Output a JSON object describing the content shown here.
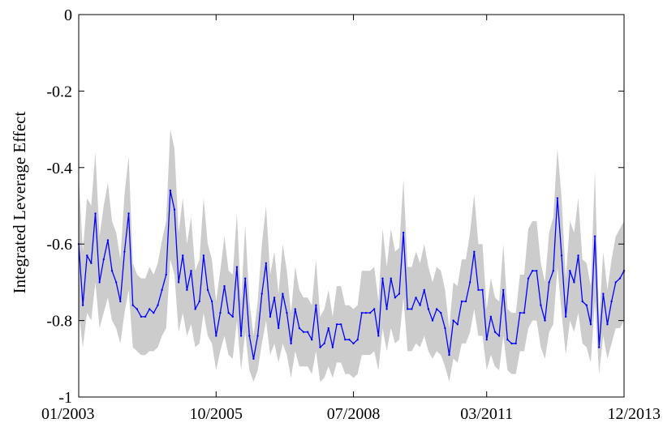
{
  "chart_data": {
    "type": "line",
    "title": "",
    "xlabel": "",
    "ylabel": "Integrated Leverage Effect",
    "ylim": [
      -1,
      0
    ],
    "yticks": [
      0,
      -0.2,
      -0.4,
      -0.6,
      -0.8,
      -1
    ],
    "ytick_labels": [
      "0",
      "-0.2",
      "-0.4",
      "-0.6",
      "-0.8",
      "-1"
    ],
    "xlim": [
      "2003-01",
      "2013-12"
    ],
    "xticks": [
      "2003-01",
      "2005-10",
      "2008-07",
      "2011-03",
      "2013-12"
    ],
    "xtick_labels": [
      "01/2003",
      "10/2005",
      "07/2008",
      "03/2011",
      "12/2013"
    ],
    "grid": false,
    "band_color": "#cccccc",
    "line_color": "#0000ff",
    "x": [
      "2003-01",
      "2003-02",
      "2003-03",
      "2003-04",
      "2003-05",
      "2003-06",
      "2003-07",
      "2003-08",
      "2003-09",
      "2003-10",
      "2003-11",
      "2003-12",
      "2004-01",
      "2004-02",
      "2004-03",
      "2004-04",
      "2004-05",
      "2004-06",
      "2004-07",
      "2004-08",
      "2004-09",
      "2004-10",
      "2004-11",
      "2004-12",
      "2005-01",
      "2005-02",
      "2005-03",
      "2005-04",
      "2005-05",
      "2005-06",
      "2005-07",
      "2005-08",
      "2005-09",
      "2005-10",
      "2005-11",
      "2005-12",
      "2006-01",
      "2006-02",
      "2006-03",
      "2006-04",
      "2006-05",
      "2006-06",
      "2006-07",
      "2006-08",
      "2006-09",
      "2006-10",
      "2006-11",
      "2006-12",
      "2007-01",
      "2007-02",
      "2007-03",
      "2007-04",
      "2007-05",
      "2007-06",
      "2007-07",
      "2007-08",
      "2007-09",
      "2007-10",
      "2007-11",
      "2007-12",
      "2008-01",
      "2008-02",
      "2008-03",
      "2008-04",
      "2008-05",
      "2008-06",
      "2008-07",
      "2008-08",
      "2008-09",
      "2008-10",
      "2008-11",
      "2008-12",
      "2009-01",
      "2009-02",
      "2009-03",
      "2009-04",
      "2009-05",
      "2009-06",
      "2009-07",
      "2009-08",
      "2009-09",
      "2009-10",
      "2009-11",
      "2009-12",
      "2010-01",
      "2010-02",
      "2010-03",
      "2010-04",
      "2010-05",
      "2010-06",
      "2010-07",
      "2010-08",
      "2010-09",
      "2010-10",
      "2010-11",
      "2010-12",
      "2011-01",
      "2011-02",
      "2011-03",
      "2011-04",
      "2011-05",
      "2011-06",
      "2011-07",
      "2011-08",
      "2011-09",
      "2011-10",
      "2011-11",
      "2011-12",
      "2012-01",
      "2012-02",
      "2012-03",
      "2012-04",
      "2012-05",
      "2012-06",
      "2012-07",
      "2012-08",
      "2012-09",
      "2012-10",
      "2012-11",
      "2012-12",
      "2013-01",
      "2013-02",
      "2013-03",
      "2013-04",
      "2013-05",
      "2013-06",
      "2013-07",
      "2013-08",
      "2013-09",
      "2013-10",
      "2013-11",
      "2013-12"
    ],
    "series": [
      {
        "values": [
          -0.6,
          -0.76,
          -0.63,
          -0.65,
          -0.52,
          -0.7,
          -0.64,
          -0.59,
          -0.67,
          -0.7,
          -0.75,
          -0.62,
          -0.52,
          -0.76,
          -0.77,
          -0.79,
          -0.79,
          -0.77,
          -0.78,
          -0.76,
          -0.72,
          -0.68,
          -0.46,
          -0.51,
          -0.7,
          -0.63,
          -0.72,
          -0.67,
          -0.77,
          -0.75,
          -0.63,
          -0.72,
          -0.75,
          -0.84,
          -0.78,
          -0.71,
          -0.78,
          -0.79,
          -0.66,
          -0.84,
          -0.69,
          -0.84,
          -0.9,
          -0.84,
          -0.73,
          -0.65,
          -0.79,
          -0.74,
          -0.82,
          -0.73,
          -0.78,
          -0.86,
          -0.77,
          -0.82,
          -0.83,
          -0.83,
          -0.85,
          -0.76,
          -0.87,
          -0.86,
          -0.82,
          -0.87,
          -0.81,
          -0.81,
          -0.85,
          -0.85,
          -0.86,
          -0.85,
          -0.78,
          -0.78,
          -0.78,
          -0.77,
          -0.84,
          -0.69,
          -0.77,
          -0.69,
          -0.74,
          -0.73,
          -0.57,
          -0.77,
          -0.77,
          -0.74,
          -0.76,
          -0.72,
          -0.77,
          -0.8,
          -0.77,
          -0.78,
          -0.82,
          -0.89,
          -0.8,
          -0.81,
          -0.75,
          -0.75,
          -0.7,
          -0.62,
          -0.72,
          -0.72,
          -0.85,
          -0.79,
          -0.83,
          -0.84,
          -0.72,
          -0.85,
          -0.86,
          -0.86,
          -0.78,
          -0.78,
          -0.69,
          -0.67,
          -0.67,
          -0.76,
          -0.8,
          -0.7,
          -0.67,
          -0.48,
          -0.63,
          -0.79,
          -0.67,
          -0.7,
          -0.63,
          -0.75,
          -0.76,
          -0.81,
          -0.58,
          -0.87,
          -0.73,
          -0.81,
          -0.75,
          -0.7,
          -0.69,
          -0.67
        ],
        "lower": [
          -0.78,
          -0.87,
          -0.78,
          -0.8,
          -0.7,
          -0.82,
          -0.78,
          -0.74,
          -0.8,
          -0.82,
          -0.86,
          -0.78,
          -0.72,
          -0.87,
          -0.88,
          -0.89,
          -0.89,
          -0.88,
          -0.88,
          -0.87,
          -0.84,
          -0.82,
          -0.64,
          -0.68,
          -0.83,
          -0.78,
          -0.84,
          -0.81,
          -0.87,
          -0.86,
          -0.78,
          -0.84,
          -0.86,
          -0.93,
          -0.88,
          -0.84,
          -0.89,
          -0.9,
          -0.8,
          -0.93,
          -0.83,
          -0.93,
          -0.96,
          -0.93,
          -0.86,
          -0.8,
          -0.89,
          -0.86,
          -0.91,
          -0.86,
          -0.89,
          -0.95,
          -0.88,
          -0.92,
          -0.92,
          -0.92,
          -0.94,
          -0.88,
          -0.96,
          -0.95,
          -0.92,
          -0.95,
          -0.91,
          -0.91,
          -0.94,
          -0.94,
          -0.95,
          -0.94,
          -0.89,
          -0.89,
          -0.89,
          -0.88,
          -0.93,
          -0.82,
          -0.88,
          -0.82,
          -0.86,
          -0.85,
          -0.74,
          -0.88,
          -0.88,
          -0.86,
          -0.87,
          -0.84,
          -0.88,
          -0.9,
          -0.88,
          -0.89,
          -0.92,
          -0.96,
          -0.9,
          -0.91,
          -0.86,
          -0.86,
          -0.83,
          -0.77,
          -0.84,
          -0.84,
          -0.93,
          -0.89,
          -0.92,
          -0.93,
          -0.84,
          -0.93,
          -0.94,
          -0.94,
          -0.88,
          -0.88,
          -0.82,
          -0.8,
          -0.8,
          -0.87,
          -0.9,
          -0.83,
          -0.81,
          -0.66,
          -0.78,
          -0.89,
          -0.8,
          -0.83,
          -0.78,
          -0.86,
          -0.87,
          -0.91,
          -0.75,
          -0.94,
          -0.84,
          -0.9,
          -0.86,
          -0.82,
          -0.82,
          -0.8
        ],
        "upper": [
          -0.42,
          -0.62,
          -0.48,
          -0.5,
          -0.36,
          -0.58,
          -0.5,
          -0.44,
          -0.54,
          -0.57,
          -0.64,
          -0.47,
          -0.37,
          -0.65,
          -0.68,
          -0.69,
          -0.69,
          -0.66,
          -0.68,
          -0.65,
          -0.59,
          -0.54,
          -0.3,
          -0.35,
          -0.57,
          -0.48,
          -0.6,
          -0.53,
          -0.67,
          -0.64,
          -0.48,
          -0.6,
          -0.64,
          -0.75,
          -0.67,
          -0.58,
          -0.67,
          -0.68,
          -0.52,
          -0.75,
          -0.55,
          -0.75,
          -0.84,
          -0.75,
          -0.6,
          -0.5,
          -0.68,
          -0.62,
          -0.73,
          -0.6,
          -0.67,
          -0.78,
          -0.66,
          -0.72,
          -0.74,
          -0.74,
          -0.76,
          -0.64,
          -0.79,
          -0.77,
          -0.72,
          -0.79,
          -0.71,
          -0.71,
          -0.76,
          -0.76,
          -0.77,
          -0.76,
          -0.67,
          -0.67,
          -0.67,
          -0.66,
          -0.75,
          -0.56,
          -0.66,
          -0.56,
          -0.62,
          -0.61,
          -0.43,
          -0.66,
          -0.66,
          -0.62,
          -0.65,
          -0.6,
          -0.66,
          -0.7,
          -0.66,
          -0.67,
          -0.72,
          -0.82,
          -0.7,
          -0.71,
          -0.64,
          -0.64,
          -0.57,
          -0.47,
          -0.6,
          -0.6,
          -0.77,
          -0.69,
          -0.74,
          -0.75,
          -0.6,
          -0.77,
          -0.78,
          -0.78,
          -0.68,
          -0.68,
          -0.56,
          -0.54,
          -0.54,
          -0.65,
          -0.7,
          -0.57,
          -0.53,
          -0.35,
          -0.48,
          -0.69,
          -0.54,
          -0.57,
          -0.48,
          -0.64,
          -0.65,
          -0.71,
          -0.41,
          -0.8,
          -0.62,
          -0.72,
          -0.64,
          -0.58,
          -0.56,
          -0.54
        ]
      }
    ]
  }
}
